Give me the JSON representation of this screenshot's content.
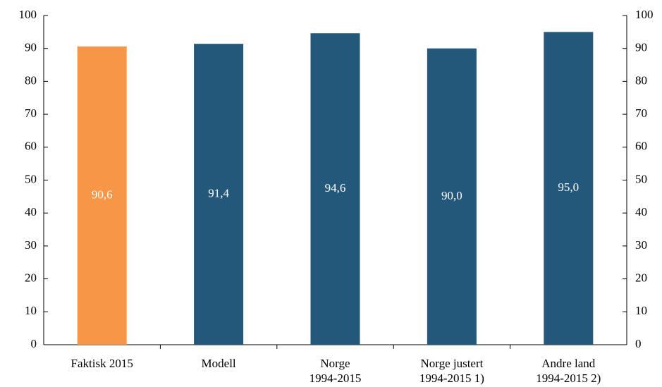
{
  "chart_data": {
    "type": "bar",
    "categories": [
      "Faktisk 2015",
      "Modell",
      "Norge\n1994-2015",
      "Norge justert\n1994-2015 1)",
      "Andre land\n1994-2015 2)"
    ],
    "series": [
      {
        "values": [
          90.6,
          91.4,
          94.6,
          90.0,
          95.0
        ],
        "value_labels": [
          "90,6",
          "91,4",
          "94,6",
          "90,0",
          "95,0"
        ],
        "colors": [
          "#f79646",
          "#23587a",
          "#23587a",
          "#23587a",
          "#23587a"
        ]
      }
    ],
    "ylim": [
      0,
      100
    ],
    "yticks": [
      0,
      10,
      20,
      30,
      40,
      50,
      60,
      70,
      80,
      90,
      100
    ],
    "y2lim": [
      0,
      100
    ],
    "y2ticks": [
      0,
      10,
      20,
      30,
      40,
      50,
      60,
      70,
      80,
      90,
      100
    ],
    "grid": false
  }
}
